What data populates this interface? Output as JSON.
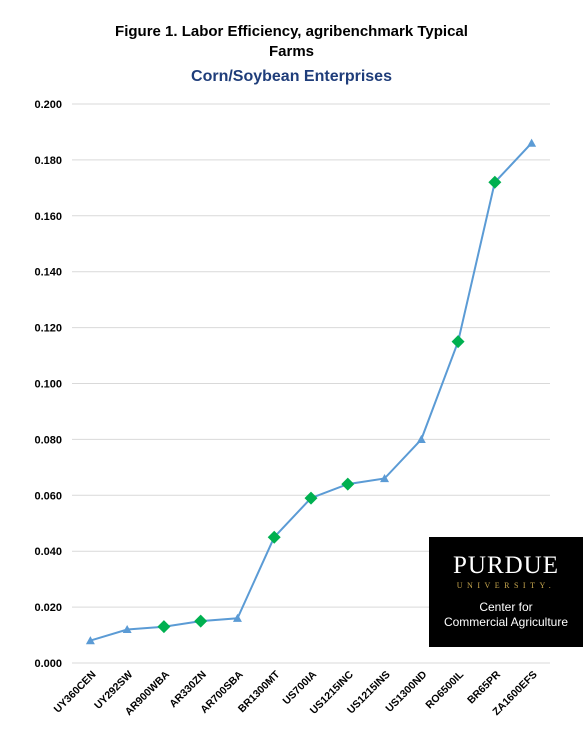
{
  "titles": {
    "line1": "Figure 1. Labor Efficiency, agribenchmark Typical",
    "line2": "Farms",
    "line3": "Corn/Soybean Enterprises"
  },
  "logo": {
    "brand": "PURDUE",
    "university": "UNIVERSITY.",
    "subtitle_line1": "Center for",
    "subtitle_line2": "Commercial Agriculture"
  },
  "colors": {
    "line": "#5b9bd5",
    "diamond": "#00b050",
    "grid": "#d9d9d9",
    "subtitle": "#1f3d7a"
  },
  "chart_data": {
    "type": "line",
    "title": "Figure 1. Labor Efficiency, agribenchmark Typical Farms",
    "subtitle": "Corn/Soybean Enterprises",
    "xlabel": "",
    "ylabel": "",
    "ylim": [
      0,
      0.2
    ],
    "yticks": [
      "0.000",
      "0.020",
      "0.040",
      "0.060",
      "0.080",
      "0.100",
      "0.120",
      "0.140",
      "0.160",
      "0.180",
      "0.200"
    ],
    "grid": true,
    "categories": [
      "UY360CEN",
      "UY292SW",
      "AR900WBA",
      "AR330ZN",
      "AR700SBA",
      "BR1300MT",
      "US700IA",
      "US1215INC",
      "US1215INS",
      "US1300ND",
      "RO6500IL",
      "BR65PR",
      "ZA1600EFS"
    ],
    "values": [
      0.008,
      0.012,
      0.013,
      0.015,
      0.016,
      0.045,
      0.059,
      0.064,
      0.066,
      0.08,
      0.115,
      0.172,
      0.186
    ],
    "markers": [
      "triangle",
      "triangle",
      "diamond",
      "diamond",
      "triangle",
      "diamond",
      "diamond",
      "diamond",
      "triangle",
      "triangle",
      "diamond",
      "diamond",
      "triangle"
    ]
  }
}
